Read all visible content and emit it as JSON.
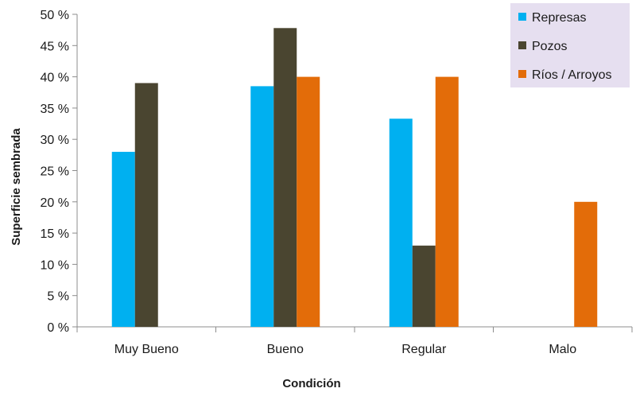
{
  "chart_data": {
    "type": "bar",
    "title": "",
    "xlabel": "Condición",
    "ylabel": "Superficie sembrada",
    "ylim": [
      0,
      50
    ],
    "ytick_step": 5,
    "tick_suffix": " %",
    "categories": [
      "Muy Bueno",
      "Bueno",
      "Regular",
      "Malo"
    ],
    "series": [
      {
        "name": "Represas",
        "color": "#00b0f0",
        "values": [
          28,
          38.5,
          33.3,
          0
        ]
      },
      {
        "name": "Pozos",
        "color": "#4a4530",
        "values": [
          39,
          47.8,
          13,
          0
        ]
      },
      {
        "name": "Ríos / Arroyos",
        "color": "#e36c09",
        "values": [
          0,
          40,
          40,
          20
        ]
      }
    ],
    "legend": {
      "position": "top-right",
      "background": "#e6dff0"
    },
    "grid": false
  }
}
